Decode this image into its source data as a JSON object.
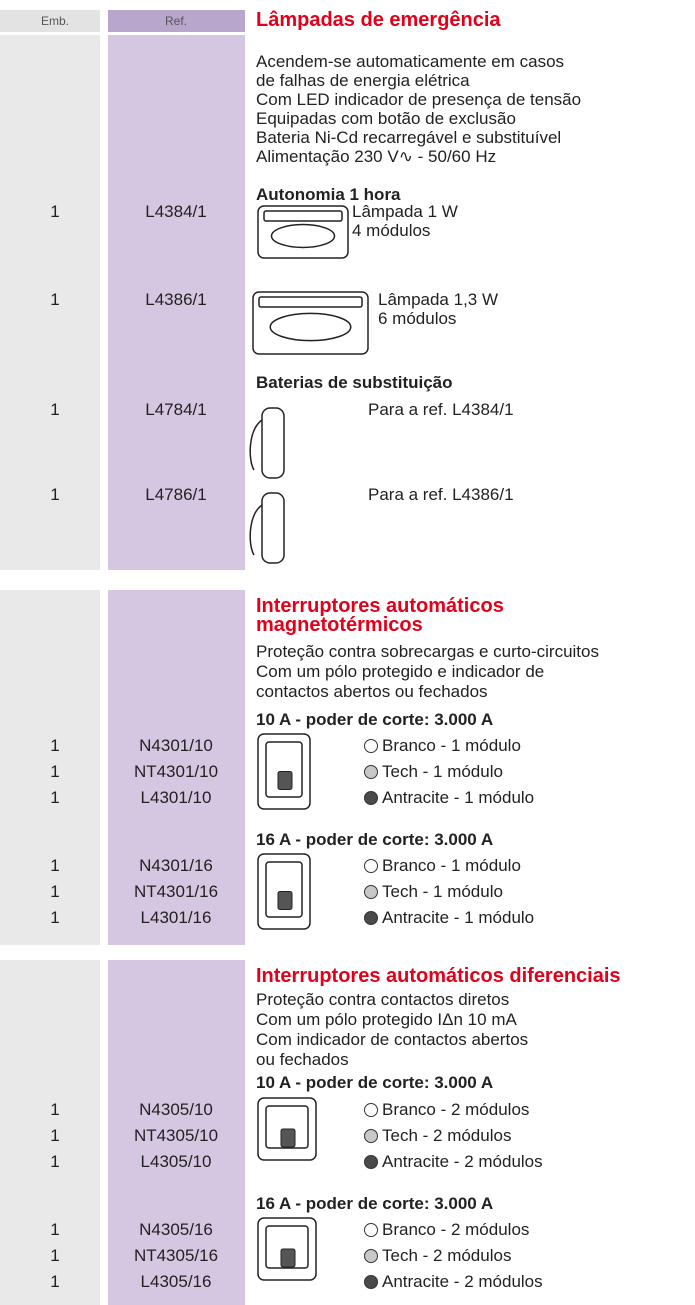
{
  "header": {
    "emb": "Emb.",
    "ref": "Ref."
  },
  "sections": [
    {
      "title": [
        "Lâmpadas de emergência"
      ],
      "description": [
        "Acendem-se automaticamente em casos",
        "de falhas de energia elétrica",
        "Com LED indicador de presença de tensão",
        "Equipadas com botão de exclusão",
        "Bateria Ni-Cd recarregável e substituível",
        "Alimentação 230 V∿ - 50/60 Hz"
      ],
      "groups": [
        {
          "heading": "Autonomia 1 hora",
          "items": [
            {
              "emb": "1",
              "ref": "L4384/1",
              "text": [
                "Lâmpada 1 W",
                "4 módulos"
              ]
            },
            {
              "emb": "1",
              "ref": "L4386/1",
              "text": [
                "Lâmpada 1,3 W",
                "6 módulos"
              ]
            }
          ]
        },
        {
          "heading": "Baterias de substituição",
          "items": [
            {
              "emb": "1",
              "ref": "L4784/1",
              "text": [
                "Para a ref. L4384/1"
              ]
            },
            {
              "emb": "1",
              "ref": "L4786/1",
              "text": [
                "Para a ref. L4386/1"
              ]
            }
          ]
        }
      ]
    },
    {
      "title": [
        "Interruptores automáticos",
        "magnetotérmicos"
      ],
      "description": [
        "Proteção contra sobrecargas e curto-circuitos",
        "Com um pólo protegido e indicador de",
        "contactos abertos ou fechados"
      ],
      "groups": [
        {
          "heading": "10 A - poder de corte: 3.000 A",
          "items": [
            {
              "emb": "1",
              "ref": "N4301/10",
              "text": [
                "Branco - 1 módulo"
              ]
            },
            {
              "emb": "1",
              "ref": "NT4301/10",
              "text": [
                "Tech - 1 módulo"
              ]
            },
            {
              "emb": "1",
              "ref": "L4301/10",
              "text": [
                "Antracite - 1 módulo"
              ]
            }
          ]
        },
        {
          "heading": "16 A - poder de corte: 3.000 A",
          "items": [
            {
              "emb": "1",
              "ref": "N4301/16",
              "text": [
                "Branco - 1 módulo"
              ]
            },
            {
              "emb": "1",
              "ref": "NT4301/16",
              "text": [
                "Tech - 1 módulo"
              ]
            },
            {
              "emb": "1",
              "ref": "L4301/16",
              "text": [
                "Antracite - 1 módulo"
              ]
            }
          ]
        }
      ]
    },
    {
      "title": [
        "Interruptores automáticos diferenciais"
      ],
      "description": [
        "Proteção contra contactos diretos",
        "Com um pólo protegido IΔn 10 mA",
        "Com indicador de contactos abertos",
        "ou fechados"
      ],
      "groups": [
        {
          "heading": "10 A - poder de corte: 3.000 A",
          "items": [
            {
              "emb": "1",
              "ref": "N4305/10",
              "text": [
                "Branco - 2 módulos"
              ]
            },
            {
              "emb": "1",
              "ref": "NT4305/10",
              "text": [
                "Tech - 2 módulos"
              ]
            },
            {
              "emb": "1",
              "ref": "L4305/10",
              "text": [
                "Antracite - 2 módulos"
              ]
            }
          ]
        },
        {
          "heading": "16 A - poder de corte: 3.000 A",
          "items": [
            {
              "emb": "1",
              "ref": "N4305/16",
              "text": [
                "Branco - 2 módulos"
              ]
            },
            {
              "emb": "1",
              "ref": "NT4305/16",
              "text": [
                "Tech - 2 módulos"
              ]
            },
            {
              "emb": "1",
              "ref": "L4305/16",
              "text": [
                "Antracite - 2 módulos"
              ]
            }
          ]
        }
      ]
    }
  ]
}
